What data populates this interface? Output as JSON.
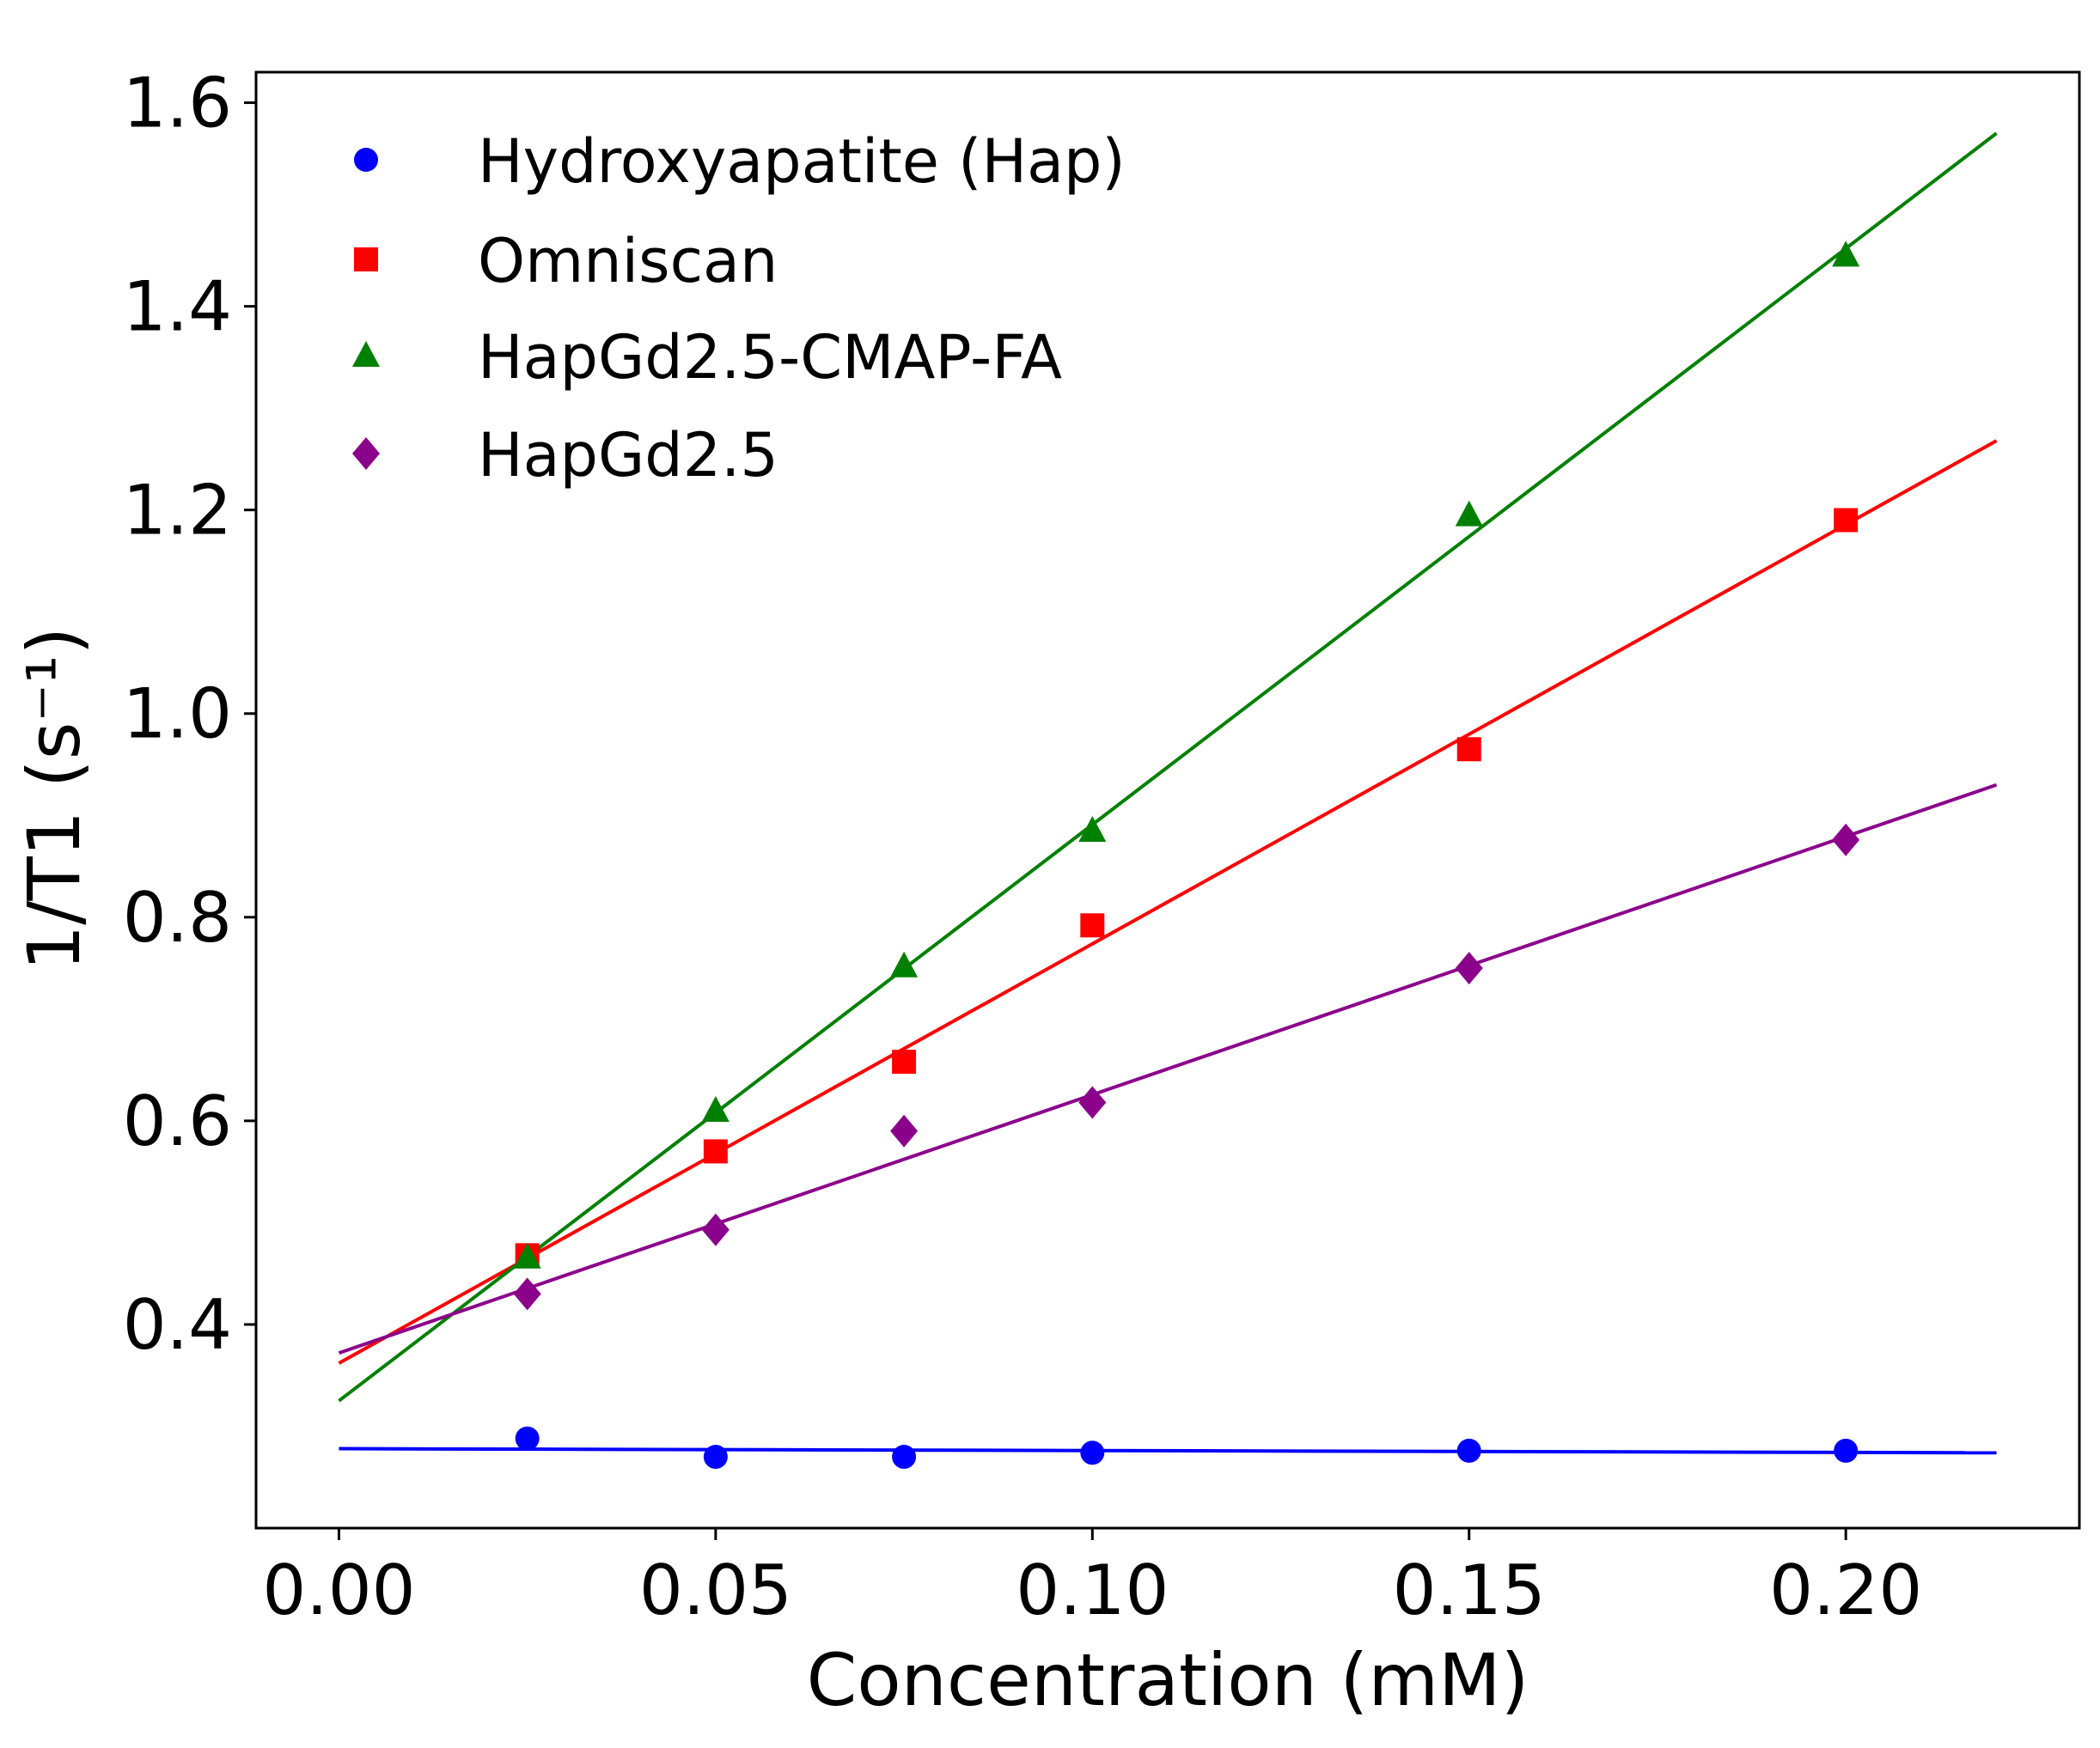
{
  "chart_data": {
    "type": "scatter",
    "title": "",
    "xlabel": "Concentration (mM)",
    "ylabel": "1/T1 (s⁻¹)",
    "xlim": [
      -0.011,
      0.231
    ],
    "ylim": [
      0.2,
      1.63
    ],
    "xticks": [
      0.0,
      0.05,
      0.1,
      0.15,
      0.2
    ],
    "xtick_labels": [
      "0.00",
      "0.05",
      "0.10",
      "0.15",
      "0.20"
    ],
    "yticks": [
      0.4,
      0.6,
      0.8,
      1.0,
      1.2,
      1.4,
      1.6
    ],
    "ytick_labels": [
      "0.4",
      "0.6",
      "0.8",
      "1.0",
      "1.2",
      "1.4",
      "1.6"
    ],
    "grid": false,
    "legend_position": "top-left",
    "series": [
      {
        "name": "Hydroxyapatite (Hap)",
        "color": "#0000ff",
        "marker": "circle",
        "x": [
          0.025,
          0.05,
          0.075,
          0.1,
          0.15,
          0.2
        ],
        "y": [
          0.288,
          0.27,
          0.27,
          0.274,
          0.276,
          0.276
        ],
        "fit": [
          [
            0.0,
            0.278
          ],
          [
            0.22,
            0.274
          ]
        ]
      },
      {
        "name": "Omniscan",
        "color": "#ff0000",
        "marker": "square",
        "x": [
          0.025,
          0.05,
          0.075,
          0.1,
          0.15,
          0.2
        ],
        "y": [
          0.468,
          0.57,
          0.658,
          0.792,
          0.965,
          1.19
        ],
        "fit": [
          [
            0.0,
            0.362
          ],
          [
            0.22,
            1.268
          ]
        ]
      },
      {
        "name": "HapGd2.5-CMAP-FA",
        "color": "#008000",
        "marker": "triangle",
        "x": [
          0.025,
          0.05,
          0.075,
          0.1,
          0.15,
          0.2
        ],
        "y": [
          0.466,
          0.61,
          0.752,
          0.885,
          1.195,
          1.45
        ],
        "fit": [
          [
            0.0,
            0.325
          ],
          [
            0.22,
            1.57
          ]
        ]
      },
      {
        "name": "HapGd2.5",
        "color": "#8b008b",
        "marker": "diamond",
        "x": [
          0.025,
          0.05,
          0.075,
          0.1,
          0.15,
          0.2
        ],
        "y": [
          0.43,
          0.493,
          0.59,
          0.618,
          0.75,
          0.876
        ],
        "fit": [
          [
            0.0,
            0.372
          ],
          [
            0.22,
            0.93
          ]
        ]
      }
    ]
  }
}
